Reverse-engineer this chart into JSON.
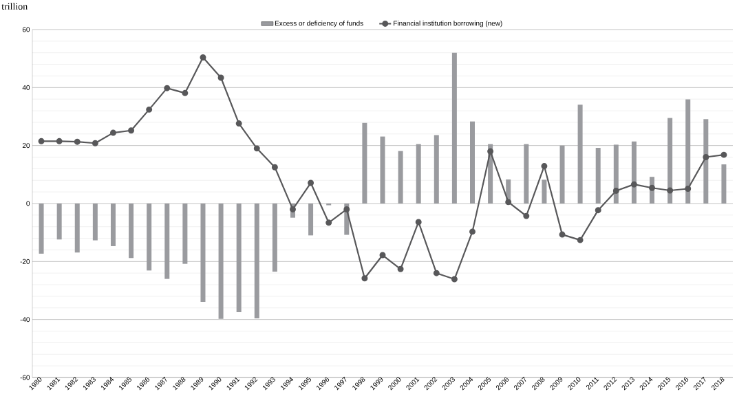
{
  "chart_data": {
    "type": "bar",
    "ylabel": "trillion",
    "categories": [
      "1980",
      "1981",
      "1982",
      "1983",
      "1984",
      "1985",
      "1986",
      "1987",
      "1988",
      "1989",
      "1990",
      "1991",
      "1992",
      "1993",
      "1994",
      "1995",
      "1996",
      "1997",
      "1998",
      "1999",
      "2000",
      "2001",
      "2002",
      "2003",
      "2004",
      "2005",
      "2006",
      "2007",
      "2008",
      "2009",
      "2010",
      "2011",
      "2012",
      "2013",
      "2014",
      "2015",
      "2016",
      "2017",
      "2018"
    ],
    "series": [
      {
        "name": "Excess or deficiency of funds",
        "color": "#9a9b9f",
        "values": [
          -17.3,
          -12.4,
          -16.9,
          -12.7,
          -14.7,
          -18.8,
          -23.1,
          -26.0,
          -20.8,
          -33.9,
          -39.8,
          -37.5,
          -39.6,
          -23.5,
          -4.9,
          -11.0,
          -0.6,
          -10.8,
          27.8,
          23.1,
          18.1,
          20.5,
          23.6,
          52.0,
          28.3,
          20.5,
          8.3,
          20.5,
          8.2,
          20.0,
          34.1,
          19.2,
          20.3,
          21.4,
          9.2,
          29.5,
          35.9,
          29.1,
          13.5
        ]
      },
      {
        "name": "Financial institution borrowing  (new)",
        "type": "line",
        "color": "#58585a",
        "marker": "circle",
        "line_style": "solid",
        "values": [
          21.5,
          21.5,
          21.3,
          20.8,
          24.4,
          25.2,
          32.4,
          39.8,
          38.1,
          50.4,
          43.4,
          27.6,
          19.0,
          12.5,
          -2.0,
          7.1,
          -6.6,
          -2.0,
          -25.8,
          -17.8,
          -22.6,
          -6.4,
          -24.0,
          -26.1,
          -9.7,
          18.0,
          0.5,
          -4.3,
          12.9,
          -10.7,
          -12.6,
          -2.3,
          4.4,
          6.6,
          5.4,
          4.5,
          5.1,
          16.0,
          16.8
        ]
      }
    ],
    "ylim": [
      -60,
      60
    ],
    "yticks": [
      -60,
      -40,
      -20,
      0,
      20,
      40,
      60
    ],
    "grid": "y",
    "legend": "top"
  }
}
